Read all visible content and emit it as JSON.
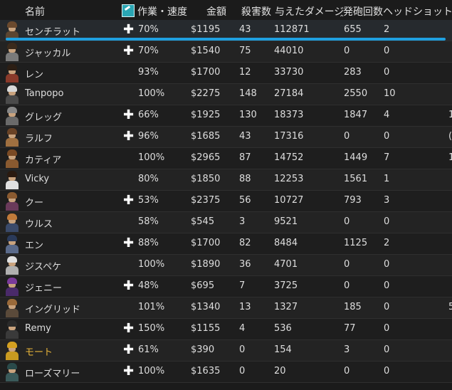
{
  "columns": {
    "name": "名前",
    "work_speed": "作業・速度",
    "value": "金額",
    "kills": "殺害数",
    "damage_dealt": "与えたダメージ",
    "shots_fired": "発砲回数",
    "headshots": "ヘッドショット"
  },
  "header_icon": "wrench-icon",
  "selected_row": 0,
  "colors": {
    "background": "#1b1b1b",
    "row_alt": "#232323",
    "selection_accent": "#1fa0e0",
    "special_name": "#e8b53a"
  },
  "rows": [
    {
      "name": "センチラット",
      "boost": true,
      "work": "70%",
      "value": "$1195",
      "kills": "43",
      "damage": "112871",
      "shots": "655",
      "heads": "2",
      "edge": "",
      "hair": "#6b4a2e",
      "outfit": "#5c4632"
    },
    {
      "name": "ジャッカル",
      "boost": true,
      "work": "70%",
      "value": "$1540",
      "kills": "75",
      "damage": "44010",
      "shots": "0",
      "heads": "0",
      "edge": "",
      "hair": "#3a2a1c",
      "outfit": "#7a7a7a"
    },
    {
      "name": "レン",
      "boost": false,
      "work": "93%",
      "value": "$1700",
      "kills": "12",
      "damage": "33730",
      "shots": "283",
      "heads": "0",
      "edge": "",
      "hair": "#2c1e14",
      "outfit": "#8a3a2a"
    },
    {
      "name": "Tanpopo",
      "boost": false,
      "work": "100%",
      "value": "$2275",
      "kills": "148",
      "damage": "27184",
      "shots": "2550",
      "heads": "10",
      "edge": "",
      "hair": "#d8d8d8",
      "outfit": "#4a4a4a"
    },
    {
      "name": "グレッグ",
      "boost": true,
      "work": "66%",
      "value": "$1925",
      "kills": "130",
      "damage": "18373",
      "shots": "1847",
      "heads": "4",
      "edge": "1",
      "hair": "#888888",
      "outfit": "#6a6a6a"
    },
    {
      "name": "ラルフ",
      "boost": true,
      "work": "96%",
      "value": "$1685",
      "kills": "43",
      "damage": "17316",
      "shots": "0",
      "heads": "0",
      "edge": "(",
      "hair": "#6a4326",
      "outfit": "#a07040"
    },
    {
      "name": "カティア",
      "boost": false,
      "work": "100%",
      "value": "$2965",
      "kills": "87",
      "damage": "14752",
      "shots": "1449",
      "heads": "7",
      "edge": "1",
      "hair": "#7a4a24",
      "outfit": "#8a5a30"
    },
    {
      "name": "Vicky",
      "boost": false,
      "work": "80%",
      "value": "$1850",
      "kills": "88",
      "damage": "12253",
      "shots": "1561",
      "heads": "1",
      "edge": "",
      "hair": "#2a1a10",
      "outfit": "#e0e0e0"
    },
    {
      "name": "クー",
      "boost": true,
      "work": "53%",
      "value": "$2375",
      "kills": "56",
      "damage": "10727",
      "shots": "793",
      "heads": "3",
      "edge": "",
      "hair": "#8a5a30",
      "outfit": "#6a3a5a"
    },
    {
      "name": "ウルス",
      "boost": false,
      "work": "58%",
      "value": "$545",
      "kills": "3",
      "damage": "9521",
      "shots": "0",
      "heads": "0",
      "edge": "",
      "hair": "#c07a3a",
      "outfit": "#3a4a6a"
    },
    {
      "name": "エン",
      "boost": true,
      "work": "88%",
      "value": "$1700",
      "kills": "82",
      "damage": "8484",
      "shots": "1125",
      "heads": "2",
      "edge": "",
      "hair": "#2a3a5a",
      "outfit": "#5a6a8a"
    },
    {
      "name": "ジスペケ",
      "boost": false,
      "work": "100%",
      "value": "$1890",
      "kills": "36",
      "damage": "4701",
      "shots": "0",
      "heads": "0",
      "edge": "",
      "hair": "#e0e0e0",
      "outfit": "#b0b0b0"
    },
    {
      "name": "ジェニー",
      "boost": true,
      "work": "48%",
      "value": "$695",
      "kills": "7",
      "damage": "3725",
      "shots": "0",
      "heads": "0",
      "edge": "",
      "hair": "#7a3a9a",
      "outfit": "#4a2a6a"
    },
    {
      "name": "イングリッド",
      "boost": false,
      "work": "101%",
      "value": "$1340",
      "kills": "13",
      "damage": "1327",
      "shots": "185",
      "heads": "0",
      "edge": "5",
      "hair": "#9a6a3a",
      "outfit": "#5a4a3a"
    },
    {
      "name": "Remy",
      "boost": true,
      "work": "150%",
      "value": "$1155",
      "kills": "4",
      "damage": "536",
      "shots": "77",
      "heads": "0",
      "edge": "",
      "hair": "#2a2a2a",
      "outfit": "#3a3a3a"
    },
    {
      "name": "モート",
      "boost": true,
      "work": "61%",
      "value": "$390",
      "kills": "0",
      "damage": "154",
      "shots": "3",
      "heads": "0",
      "edge": "",
      "gold": true,
      "hair": "#d4a020",
      "outfit": "#c89a20"
    },
    {
      "name": "ローズマリー",
      "boost": true,
      "work": "100%",
      "value": "$1635",
      "kills": "0",
      "damage": "20",
      "shots": "0",
      "heads": "0",
      "edge": "",
      "hair": "#2a4a4a",
      "outfit": "#3a5a5a"
    }
  ]
}
